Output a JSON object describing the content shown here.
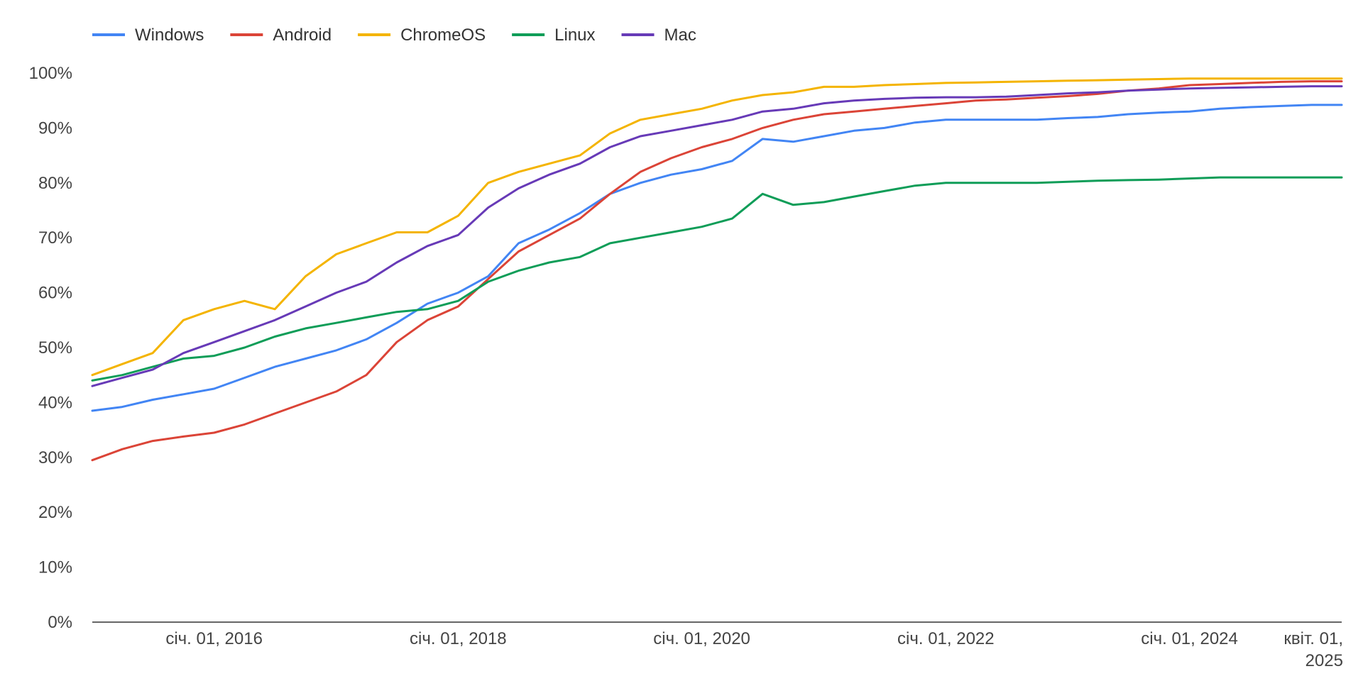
{
  "chart_data": {
    "type": "line",
    "title": "",
    "xlabel": "",
    "ylabel": "",
    "x_axis": {
      "type": "date",
      "range": [
        "2015-01-01",
        "2025-04-01"
      ],
      "ticks": [
        {
          "date": "2016-01-01",
          "label": "січ. 01, 2016"
        },
        {
          "date": "2018-01-01",
          "label": "січ. 01, 2018"
        },
        {
          "date": "2020-01-01",
          "label": "січ. 01, 2020"
        },
        {
          "date": "2022-01-01",
          "label": "січ. 01, 2022"
        },
        {
          "date": "2024-01-01",
          "label": "січ. 01, 2024"
        },
        {
          "date": "2025-04-01",
          "label": "квіт. 01,",
          "label2": "2025"
        }
      ]
    },
    "y_axis": {
      "range": [
        0,
        100
      ],
      "unit": "%",
      "ticks": [
        {
          "value": 0,
          "label": "0%"
        },
        {
          "value": 10,
          "label": "10%"
        },
        {
          "value": 20,
          "label": "20%"
        },
        {
          "value": 30,
          "label": "30%"
        },
        {
          "value": 40,
          "label": "40%"
        },
        {
          "value": 50,
          "label": "50%"
        },
        {
          "value": 60,
          "label": "60%"
        },
        {
          "value": 70,
          "label": "70%"
        },
        {
          "value": 80,
          "label": "80%"
        },
        {
          "value": 90,
          "label": "90%"
        },
        {
          "value": 100,
          "label": "100%"
        }
      ]
    },
    "grid": false,
    "legend": {
      "position": "top-left"
    },
    "x": [
      "2015-01-01",
      "2015-04-01",
      "2015-07-01",
      "2015-10-01",
      "2016-01-01",
      "2016-04-01",
      "2016-07-01",
      "2016-10-01",
      "2017-01-01",
      "2017-04-01",
      "2017-07-01",
      "2017-10-01",
      "2018-01-01",
      "2018-04-01",
      "2018-07-01",
      "2018-10-01",
      "2019-01-01",
      "2019-04-01",
      "2019-07-01",
      "2019-10-01",
      "2020-01-01",
      "2020-04-01",
      "2020-07-01",
      "2020-10-01",
      "2021-01-01",
      "2021-04-01",
      "2021-07-01",
      "2021-10-01",
      "2022-01-01",
      "2022-04-01",
      "2022-07-01",
      "2022-10-01",
      "2023-01-01",
      "2023-04-01",
      "2023-07-01",
      "2023-10-01",
      "2024-01-01",
      "2024-04-01",
      "2024-07-01",
      "2024-10-01",
      "2025-01-01",
      "2025-04-01"
    ],
    "series": [
      {
        "name": "Windows",
        "color": "#4285f4",
        "values": [
          38.5,
          39.2,
          40.5,
          41.5,
          42.5,
          44.5,
          46.5,
          48.0,
          49.5,
          51.5,
          54.5,
          58.0,
          60.0,
          63.0,
          69.0,
          71.5,
          74.5,
          78.0,
          80.0,
          81.5,
          82.5,
          84.0,
          88.0,
          87.5,
          88.5,
          89.5,
          90.0,
          91.0,
          91.5,
          91.5,
          91.5,
          91.5,
          91.8,
          92.0,
          92.5,
          92.8,
          93.0,
          93.5,
          93.8,
          94.0,
          94.2,
          94.2
        ]
      },
      {
        "name": "Android",
        "color": "#db4437",
        "values": [
          29.5,
          31.5,
          33.0,
          33.8,
          34.5,
          36.0,
          38.0,
          40.0,
          42.0,
          45.0,
          51.0,
          55.0,
          57.5,
          62.5,
          67.5,
          70.5,
          73.5,
          78.0,
          82.0,
          84.5,
          86.5,
          88.0,
          90.0,
          91.5,
          92.5,
          93.0,
          93.5,
          94.0,
          94.5,
          95.0,
          95.2,
          95.5,
          95.8,
          96.2,
          96.8,
          97.2,
          97.8,
          98.0,
          98.2,
          98.4,
          98.5,
          98.5
        ]
      },
      {
        "name": "ChromeOS",
        "color": "#f4b400",
        "values": [
          45.0,
          47.0,
          49.0,
          55.0,
          57.0,
          58.5,
          57.0,
          63.0,
          67.0,
          69.0,
          71.0,
          71.0,
          74.0,
          80.0,
          82.0,
          83.5,
          85.0,
          89.0,
          91.5,
          92.5,
          93.5,
          95.0,
          96.0,
          96.5,
          97.5,
          97.5,
          97.8,
          98.0,
          98.2,
          98.3,
          98.4,
          98.5,
          98.6,
          98.7,
          98.8,
          98.9,
          99.0,
          99.0,
          99.0,
          99.0,
          99.0,
          99.0
        ]
      },
      {
        "name": "Linux",
        "color": "#0f9d58",
        "values": [
          44.0,
          45.0,
          46.5,
          48.0,
          48.5,
          50.0,
          52.0,
          53.5,
          54.5,
          55.5,
          56.5,
          57.0,
          58.5,
          62.0,
          64.0,
          65.5,
          66.5,
          69.0,
          70.0,
          71.0,
          72.0,
          73.5,
          78.0,
          76.0,
          76.5,
          77.5,
          78.5,
          79.5,
          80.0,
          80.0,
          80.0,
          80.0,
          80.2,
          80.4,
          80.5,
          80.6,
          80.8,
          81.0,
          81.0,
          81.0,
          81.0,
          81.0
        ]
      },
      {
        "name": "Mac",
        "color": "#673ab7",
        "values": [
          43.0,
          44.5,
          46.0,
          49.0,
          51.0,
          53.0,
          55.0,
          57.5,
          60.0,
          62.0,
          65.5,
          68.5,
          70.5,
          75.5,
          79.0,
          81.5,
          83.5,
          86.5,
          88.5,
          89.5,
          90.5,
          91.5,
          93.0,
          93.5,
          94.5,
          95.0,
          95.3,
          95.5,
          95.6,
          95.6,
          95.7,
          96.0,
          96.3,
          96.5,
          96.8,
          97.0,
          97.2,
          97.3,
          97.4,
          97.5,
          97.6,
          97.6
        ]
      }
    ]
  }
}
